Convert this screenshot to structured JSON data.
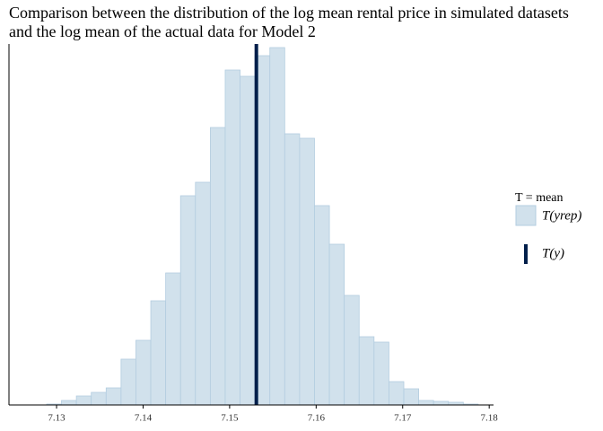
{
  "chart_data": {
    "type": "histogram",
    "title": "Comparison between the distribution of the log mean rental price in simulated datasets\nand the log mean of the actual data for Model 2",
    "bins": [
      7.12885,
      7.13057,
      7.13229,
      7.13401,
      7.13573,
      7.13745,
      7.13917,
      7.14089,
      7.14261,
      7.14433,
      7.14605,
      7.14777,
      7.14949,
      7.15121,
      7.15293,
      7.15465,
      7.15637,
      7.15809,
      7.15981,
      7.16153,
      7.16325,
      7.16497,
      7.16669,
      7.16841,
      7.17013,
      7.17185,
      7.17357,
      7.17529,
      7.17701,
      7.17873
    ],
    "counts": [
      1,
      5,
      10,
      14,
      19,
      51,
      72,
      116,
      147,
      233,
      248,
      309,
      373,
      366,
      389,
      398,
      302,
      297,
      222,
      179,
      122,
      76,
      70,
      26,
      18,
      5,
      4,
      3,
      1
    ],
    "xlim": [
      7.1245,
      7.1805
    ],
    "xticks": [
      7.13,
      7.14,
      7.15,
      7.16,
      7.17,
      7.18
    ],
    "ylim": [
      0,
      402
    ],
    "legend_title": "T = mean",
    "replicated": {
      "name": "T(yrep)",
      "color": "#d1e1ec",
      "edge_color": "#b3cde0"
    },
    "observed": {
      "name": "T(y)",
      "value": 7.15309,
      "color": "#011f4b"
    }
  }
}
